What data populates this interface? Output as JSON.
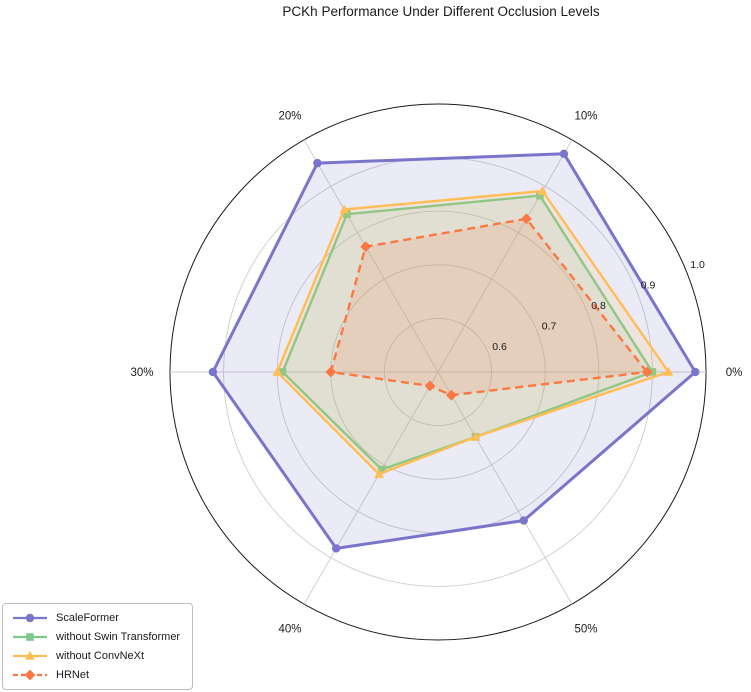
{
  "title": "PCKh Performance Under Different Occlusion Levels",
  "chart_data": {
    "type": "radar",
    "title": "PCKh Performance Under Different Occlusion Levels",
    "categories": [
      "0%",
      "10%",
      "20%",
      "30%",
      "40%",
      "50%"
    ],
    "axis_meaning": "occlusion level",
    "value_meaning": "PCKh",
    "series": [
      {
        "name": "ScaleFormer",
        "color": "#7b74cb",
        "marker": "circle",
        "line_style": "solid",
        "values": [
          0.98,
          0.97,
          0.95,
          0.92,
          0.88,
          0.82
        ]
      },
      {
        "name": "without Swin Transformer",
        "color": "#7ec88e",
        "marker": "square",
        "line_style": "solid",
        "values": [
          0.9,
          0.88,
          0.84,
          0.79,
          0.71,
          0.64
        ]
      },
      {
        "name": "without ConvNeXt",
        "color": "#ffbe55",
        "marker": "triangle",
        "line_style": "solid",
        "values": [
          0.93,
          0.89,
          0.85,
          0.8,
          0.72,
          0.64
        ]
      },
      {
        "name": "HRNet",
        "color": "#fb7744",
        "marker": "diamond",
        "line_style": "dashed",
        "values": [
          0.89,
          0.83,
          0.77,
          0.7,
          0.53,
          0.55
        ]
      }
    ],
    "radial_ticks": [
      0.6,
      0.7,
      0.8,
      0.9,
      1.0
    ],
    "rmin": 0.5,
    "rmax": 1.0,
    "tick_label_angle_deg": 22.5,
    "grid": true,
    "legend_position": "lower left",
    "colors": {
      "grid": "#cdcdcd",
      "outer_ring": "#1a1a1a",
      "background": "#ffffff"
    }
  }
}
